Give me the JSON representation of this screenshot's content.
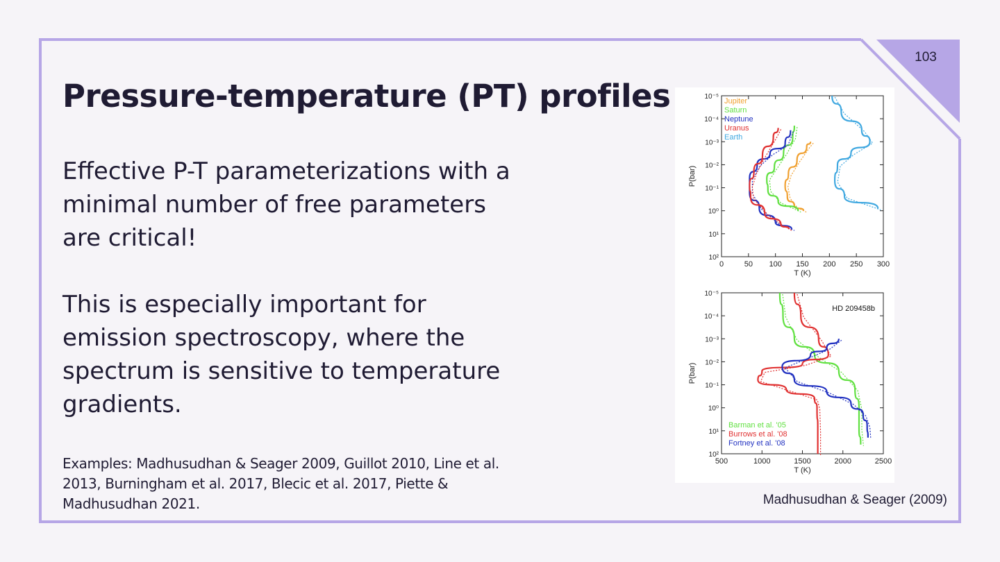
{
  "slide": {
    "title": "Pressure-temperature (PT) profiles",
    "page_number": "103",
    "paragraph_1": [
      "Effective P-T parameterizations with a",
      "minimal number of free parameters",
      "are critical!"
    ],
    "paragraph_2": [
      "This is especially important for",
      "emission spectroscopy, where the",
      "spectrum is sensitive to temperature",
      "gradients."
    ],
    "examples": [
      "Examples: Madhusudhan & Seager 2009, Guillot 2010, Line et al.",
      "2013, Burningham et al. 2017, Blecic et al. 2017, Piette &",
      "Madhusudhan 2021."
    ],
    "caption": "Madhusudhan & Seager (2009)"
  },
  "colors": {
    "frame": "#b6a6e6",
    "text": "#1f1b33",
    "corner": "#b6a6e6"
  },
  "chart_data": [
    {
      "type": "line",
      "xlabel": "T (K)",
      "ylabel": "P(bar)",
      "xlim": [
        0,
        300
      ],
      "ylim_log10": [
        -5,
        2
      ],
      "y_inverted": true,
      "y_scale": "log",
      "xticks": [
        "0",
        "50",
        "100",
        "150",
        "200",
        "250",
        "300"
      ],
      "yticks": [
        "10⁻⁵",
        "10⁻⁴",
        "10⁻³",
        "10⁻²",
        "10⁻¹",
        "10⁰",
        "10¹",
        "10²"
      ],
      "legend_position": "top-left",
      "series": [
        {
          "name": "Jupiter",
          "color": "#f0a030",
          "T": [
            165,
            158,
            140,
            124,
            118,
            122,
            135,
            152
          ],
          "logP": [
            -3.0,
            -2.8,
            -2.2,
            -1.6,
            -1.1,
            -0.6,
            -0.2,
            0.0
          ]
        },
        {
          "name": "Saturn",
          "color": "#60e040",
          "T": [
            135,
            132,
            115,
            98,
            84,
            86,
            105,
            142
          ],
          "logP": [
            -3.7,
            -3.2,
            -2.5,
            -1.9,
            -1.4,
            -0.9,
            -0.4,
            0.0
          ]
        },
        {
          "name": "Neptune",
          "color": "#2030c0",
          "T": [
            128,
            118,
            90,
            66,
            52,
            52,
            70,
            100,
            130
          ],
          "logP": [
            -3.5,
            -2.9,
            -2.5,
            -2.0,
            -1.4,
            -0.8,
            -0.1,
            0.5,
            0.8
          ]
        },
        {
          "name": "Uranus",
          "color": "#e03030",
          "T": [
            105,
            96,
            76,
            60,
            52,
            54,
            80,
            110,
            125
          ],
          "logP": [
            -3.6,
            -3.2,
            -2.4,
            -1.7,
            -1.1,
            -0.6,
            0.1,
            0.6,
            0.8
          ]
        },
        {
          "name": "Earth",
          "color": "#40a8e0",
          "T": [
            205,
            222,
            260,
            275,
            240,
            215,
            210,
            228,
            290
          ],
          "logP": [
            -5.0,
            -4.3,
            -3.5,
            -3.0,
            -2.5,
            -2.0,
            -1.3,
            -0.6,
            -0.1
          ]
        }
      ]
    },
    {
      "type": "line",
      "title": "HD 209458b",
      "xlabel": "T (K)",
      "ylabel": "P(bar)",
      "xlim": [
        500,
        2500
      ],
      "ylim_log10": [
        -5,
        2
      ],
      "y_inverted": true,
      "y_scale": "log",
      "xticks": [
        "500",
        "1000",
        "1500",
        "2000",
        "2500"
      ],
      "yticks": [
        "10⁻⁵",
        "10⁻⁴",
        "10⁻³",
        "10⁻²",
        "10⁻¹",
        "10⁰",
        "10¹",
        "10²"
      ],
      "legend_position": "bottom-left",
      "series": [
        {
          "name": "Barman et al. '05",
          "color": "#60e040",
          "T": [
            1220,
            1260,
            1400,
            1650,
            1950,
            2150,
            2200,
            2200,
            2220
          ],
          "logP": [
            -5.0,
            -4.0,
            -3.0,
            -2.3,
            -1.6,
            -0.8,
            0.0,
            0.9,
            1.6
          ]
        },
        {
          "name": "Burrows et al. '08",
          "color": "#e03030",
          "T": [
            1400,
            1480,
            1700,
            1820,
            1500,
            1000,
            950,
            1300,
            1650,
            1680,
            1690,
            1690
          ],
          "logP": [
            -5.0,
            -4.0,
            -3.0,
            -2.3,
            -1.9,
            -1.6,
            -1.2,
            -0.8,
            -0.4,
            0.0,
            1.0,
            2.0
          ]
        },
        {
          "name": "Fortney et al. '08",
          "color": "#2030c0",
          "T": [
            1950,
            1800,
            1600,
            1250,
            1400,
            1800,
            2100,
            2250,
            2300,
            2310
          ],
          "logP": [
            -3.0,
            -2.6,
            -2.3,
            -1.8,
            -1.2,
            -0.7,
            -0.2,
            0.3,
            0.8,
            1.3
          ]
        }
      ]
    }
  ]
}
